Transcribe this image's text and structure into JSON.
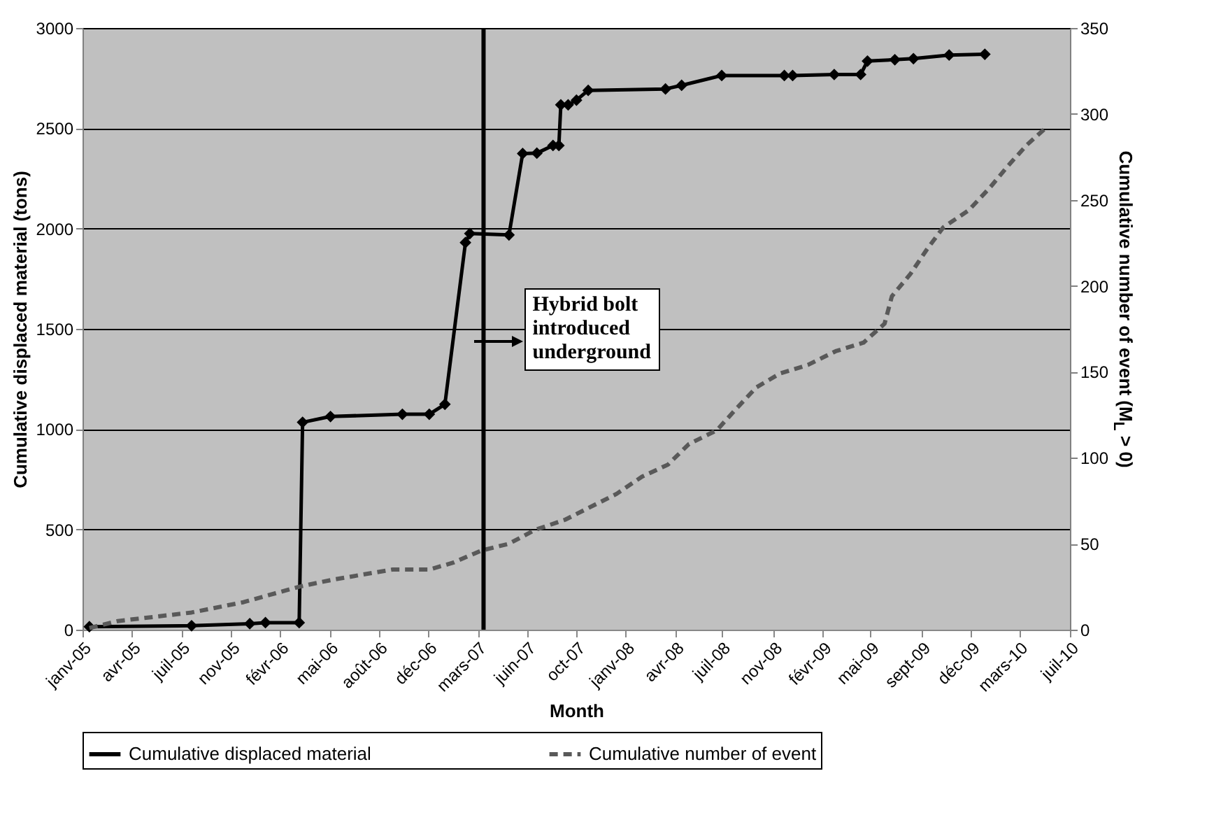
{
  "chart_data": {
    "type": "line",
    "xlabel": "Month",
    "ylabel": "Cumulative displaced material (tons)",
    "y2label": "Cumulative number of event (M$_{L}$ > 0)",
    "xlim": [
      "2005-01-01",
      "2010-07-13"
    ],
    "xticks": [
      {
        "value": "2005-01-01",
        "label": "janv-05"
      },
      {
        "value": "2005-04-12",
        "label": "avr-05"
      },
      {
        "value": "2005-07-22",
        "label": "juil-05"
      },
      {
        "value": "2005-11-01",
        "label": "nov-05"
      },
      {
        "value": "2006-02-09",
        "label": "févr-06"
      },
      {
        "value": "2006-05-21",
        "label": "mai-06"
      },
      {
        "value": "2006-08-30",
        "label": "août-06"
      },
      {
        "value": "2006-12-09",
        "label": "déc-06"
      },
      {
        "value": "2007-03-20",
        "label": "mars-07"
      },
      {
        "value": "2007-06-29",
        "label": "juin-07"
      },
      {
        "value": "2007-10-08",
        "label": "oct-07"
      },
      {
        "value": "2008-01-17",
        "label": "janv-08"
      },
      {
        "value": "2008-04-27",
        "label": "avr-08"
      },
      {
        "value": "2008-07-31",
        "label": "juil-08"
      },
      {
        "value": "2008-11-14",
        "label": "nov-08"
      },
      {
        "value": "2009-02-23",
        "label": "févr-09"
      },
      {
        "value": "2009-05-31",
        "label": "mai-09"
      },
      {
        "value": "2009-09-13",
        "label": "sept-09"
      },
      {
        "value": "2009-12-23",
        "label": "déc-09"
      },
      {
        "value": "2010-03-31",
        "label": "mars-10"
      },
      {
        "value": "2010-07-13",
        "label": "juil-10"
      }
    ],
    "ylim": [
      0,
      3000
    ],
    "yticks": [
      0,
      500,
      1000,
      1500,
      2000,
      2500,
      3000
    ],
    "y2lim": [
      0,
      350
    ],
    "y2ticks": [
      0,
      50,
      100,
      150,
      200,
      250,
      300,
      350
    ],
    "grid": "y",
    "legend": "bottom",
    "series": [
      {
        "name": "Cumulative displaced material",
        "color": "#000000",
        "marker": "diamond",
        "line_style": "solid",
        "x": [
          "2005-01-15",
          "2005-08-12",
          "2005-12-09",
          "2006-01-10",
          "2006-03-20",
          "2006-03-27",
          "2006-05-23",
          "2006-10-17",
          "2006-12-11",
          "2007-01-12",
          "2007-02-23",
          "2007-03-04",
          "2007-05-23",
          "2007-06-20",
          "2007-07-19",
          "2007-08-21",
          "2007-09-02",
          "2007-09-06",
          "2007-09-21",
          "2007-10-08",
          "2007-11-01",
          "2008-04-07",
          "2008-05-10",
          "2008-07-31",
          "2008-12-06",
          "2008-12-23",
          "2009-03-18",
          "2009-05-11",
          "2009-05-25",
          "2009-07-20",
          "2009-08-27",
          "2009-11-08",
          "2010-01-20"
        ],
        "values": [
          15,
          20,
          30,
          35,
          35,
          1034,
          1063,
          1074,
          1074,
          1124,
          1930,
          1975,
          1968,
          2374,
          2376,
          2414,
          2414,
          2617,
          2617,
          2640,
          2689,
          2696,
          2714,
          2763,
          2763,
          2763,
          2768,
          2768,
          2835,
          2842,
          2847,
          2865,
          2869
        ]
      },
      {
        "name": "Cumulative number of event",
        "color": "#595959",
        "marker": "none",
        "line_style": "dashed",
        "axis": "y2",
        "x": [
          "2005-01-15",
          "2005-03-14",
          "2005-08-12",
          "2005-11-26",
          "2006-03-20",
          "2006-05-26",
          "2006-09-27",
          "2006-12-11",
          "2007-01-29",
          "2007-03-27",
          "2007-05-23",
          "2007-07-15",
          "2007-09-15",
          "2007-12-29",
          "2008-02-19",
          "2008-04-12",
          "2008-05-25",
          "2008-07-21",
          "2008-08-28",
          "2008-10-10",
          "2008-11-27",
          "2009-01-23",
          "2009-03-21",
          "2009-05-17",
          "2009-06-29",
          "2009-07-14",
          "2009-08-21",
          "2009-09-23",
          "2009-10-27",
          "2009-12-18",
          "2010-01-30",
          "2010-03-09",
          "2010-04-16",
          "2010-05-29"
        ],
        "values": [
          1,
          5,
          10,
          16,
          25,
          29,
          35,
          35,
          39,
          46,
          50,
          58,
          64,
          79,
          89,
          96,
          108,
          116,
          128,
          141,
          149,
          154,
          162,
          167,
          178,
          194,
          207,
          221,
          234,
          244,
          257,
          270,
          282,
          293
        ]
      }
    ],
    "ref_lines": [
      {
        "axis": "x",
        "value": "2007-04-01",
        "label": "Hybrid bolt introduced underground",
        "color": "#000000"
      }
    ]
  }
}
